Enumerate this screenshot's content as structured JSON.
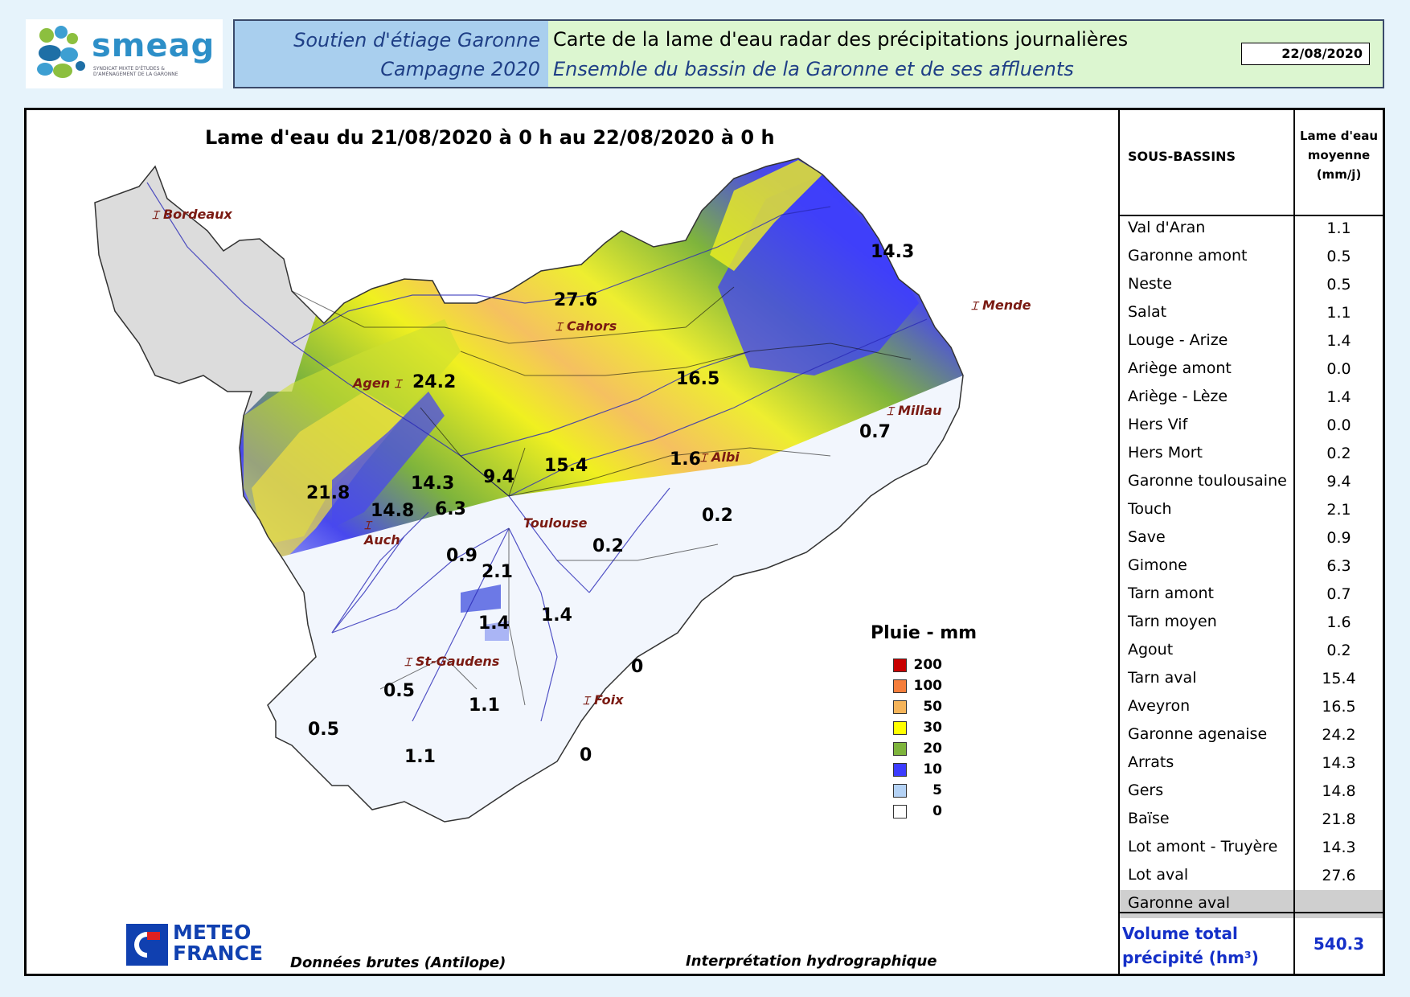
{
  "header": {
    "logo_text": "smeag",
    "logo_subtext": "SYNDICAT MIXTE D'ÉTUDES & D'AMÉNAGEMENT DE LA GARONNE",
    "left_line1": "Soutien d'étiage Garonne",
    "left_line2": "Campagne 2020",
    "right_line1": "Carte de la lame d'eau radar des précipitations journalières",
    "right_line2": "Ensemble du bassin de la Garonne et de ses affluents",
    "date": "22/08/2020"
  },
  "map": {
    "title": "Lame d'eau du 21/08/2020 à 0 h au 22/08/2020 à 0 h",
    "cities": [
      {
        "name": "Bordeaux"
      },
      {
        "name": "Mende"
      },
      {
        "name": "Cahors"
      },
      {
        "name": "Agen"
      },
      {
        "name": "Millau"
      },
      {
        "name": "Albi"
      },
      {
        "name": "Toulouse"
      },
      {
        "name": "Auch"
      },
      {
        "name": "St-Gaudens"
      },
      {
        "name": "Foix"
      }
    ],
    "values": [
      "14.3",
      "27.6",
      "24.2",
      "16.5",
      "0.7",
      "1.6",
      "15.4",
      "9.4",
      "14.3",
      "21.8",
      "14.8",
      "6.3",
      "0.2",
      "0.2",
      "0.9",
      "2.1",
      "1.4",
      "1.4",
      "0",
      "0.5",
      "1.1",
      "0.5",
      "1.1",
      "0"
    ]
  },
  "legend": {
    "title": "Pluie - mm",
    "items": [
      {
        "label": "200",
        "color": "#c80000"
      },
      {
        "label": "100",
        "color": "#f57e3c"
      },
      {
        "label": "50",
        "color": "#f5b45a"
      },
      {
        "label": "30",
        "color": "#ffff00"
      },
      {
        "label": "20",
        "color": "#7eb43c"
      },
      {
        "label": "10",
        "color": "#3c3cff"
      },
      {
        "label": "5",
        "color": "#b4d2f5"
      },
      {
        "label": "0",
        "color": "#ffffff"
      }
    ]
  },
  "footer": {
    "mf_line1": "METEO",
    "mf_line2": "FRANCE",
    "source": "Données brutes (Antilope)",
    "interp": "Interprétation hydrographique"
  },
  "table": {
    "col1": "SOUS-BASSINS",
    "col2_line1": "Lame d'eau",
    "col2_line2": "moyenne",
    "col2_line3": "(mm/j)",
    "rows": [
      {
        "name": "Val d'Aran",
        "value": "1.1"
      },
      {
        "name": "Garonne amont",
        "value": "0.5"
      },
      {
        "name": "Neste",
        "value": "0.5"
      },
      {
        "name": "Salat",
        "value": "1.1"
      },
      {
        "name": "Louge - Arize",
        "value": "1.4"
      },
      {
        "name": "Ariège amont",
        "value": "0.0"
      },
      {
        "name": "Ariège - Lèze",
        "value": "1.4"
      },
      {
        "name": "Hers Vif",
        "value": "0.0"
      },
      {
        "name": "Hers Mort",
        "value": "0.2"
      },
      {
        "name": "Garonne toulousaine",
        "value": "9.4"
      },
      {
        "name": "Touch",
        "value": "2.1"
      },
      {
        "name": "Save",
        "value": "0.9"
      },
      {
        "name": "Gimone",
        "value": "6.3"
      },
      {
        "name": "Tarn amont",
        "value": "0.7"
      },
      {
        "name": "Tarn moyen",
        "value": "1.6"
      },
      {
        "name": "Agout",
        "value": "0.2"
      },
      {
        "name": "Tarn aval",
        "value": "15.4"
      },
      {
        "name": "Aveyron",
        "value": "16.5"
      },
      {
        "name": "Garonne agenaise",
        "value": "24.2"
      },
      {
        "name": "Arrats",
        "value": "14.3"
      },
      {
        "name": "Gers",
        "value": "14.8"
      },
      {
        "name": "Baïse",
        "value": "21.8"
      },
      {
        "name": "Lot amont - Truyère",
        "value": "14.3"
      },
      {
        "name": "Lot aval",
        "value": "27.6"
      },
      {
        "name": "Garonne aval",
        "value": ""
      }
    ],
    "volume_label_line1": "Volume total",
    "volume_label_line2": "précipité (hm³)",
    "volume_value": "540.3"
  }
}
